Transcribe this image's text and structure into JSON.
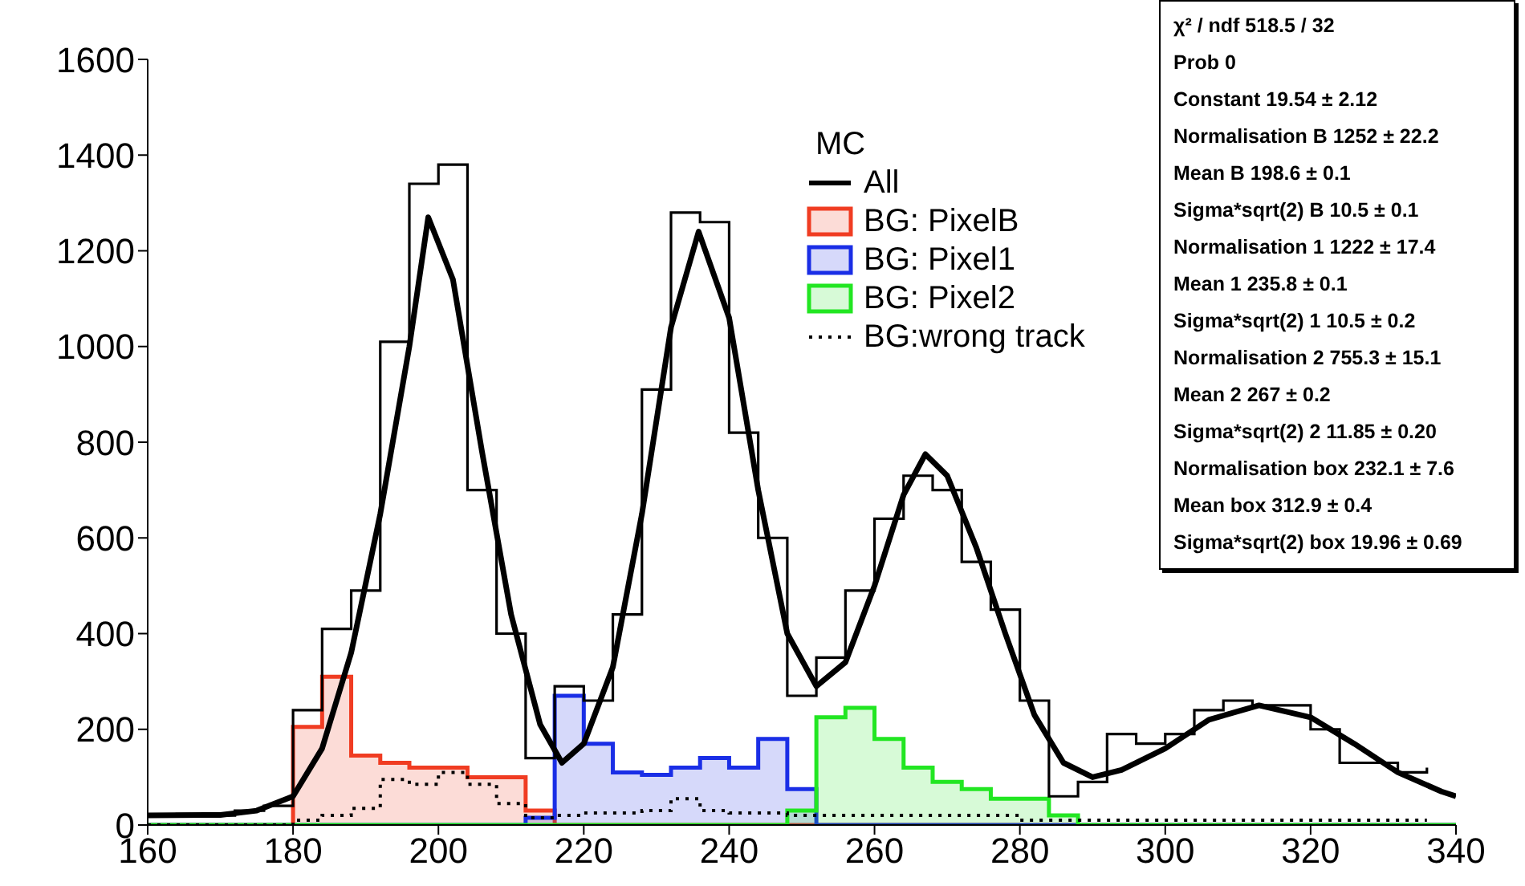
{
  "chart_data": {
    "type": "histogram",
    "legend_title": "MC",
    "legend": "top",
    "bins": [
      160,
      164,
      168,
      172,
      176,
      180,
      184,
      188,
      192,
      196,
      200,
      204,
      208,
      212,
      216,
      220,
      224,
      228,
      232,
      236,
      240,
      244,
      248,
      252,
      256,
      260,
      264,
      268,
      272,
      276,
      280,
      284,
      288,
      292,
      296,
      300,
      304,
      308,
      312,
      316,
      320,
      324,
      328,
      332,
      336,
      340
    ],
    "series": [
      {
        "name": "All",
        "type": "step",
        "x": [
          160,
          164,
          168,
          172,
          176,
          180,
          184,
          188,
          192,
          196,
          200,
          204,
          208,
          212,
          216,
          220,
          224,
          228,
          232,
          236,
          240,
          244,
          248,
          252,
          256,
          260,
          264,
          268,
          272,
          276,
          280,
          284,
          288,
          292,
          296,
          300,
          304,
          308,
          312,
          316,
          320,
          324,
          328,
          332,
          336
        ],
        "color": "#000000",
        "values": [
          20,
          23,
          20,
          30,
          40,
          240,
          410,
          490,
          1010,
          1340,
          1380,
          700,
          400,
          140,
          290,
          260,
          440,
          910,
          1280,
          1260,
          820,
          600,
          270,
          350,
          490,
          640,
          730,
          700,
          550,
          450,
          260,
          60,
          90,
          190,
          170,
          190,
          240,
          260,
          250,
          250,
          200,
          130,
          130,
          110,
          120
        ]
      },
      {
        "name": "BG: PixelB",
        "color": "#f03c22",
        "values": [
          0,
          0,
          0,
          0,
          0,
          205,
          310,
          145,
          130,
          120,
          120,
          100,
          100,
          30,
          0,
          0,
          0,
          0,
          0,
          0,
          0,
          0,
          0,
          0,
          0,
          0,
          0,
          0,
          0,
          0,
          0,
          0,
          0,
          0,
          0,
          0,
          0,
          0,
          0,
          0,
          0,
          0,
          0,
          0,
          0
        ]
      },
      {
        "name": "BG: Pixel1",
        "color": "#1a2ee6",
        "values": [
          0,
          0,
          0,
          0,
          0,
          0,
          0,
          0,
          0,
          0,
          0,
          0,
          0,
          15,
          270,
          170,
          110,
          105,
          120,
          140,
          120,
          180,
          75,
          0,
          0,
          0,
          0,
          0,
          0,
          0,
          0,
          0,
          0,
          0,
          0,
          0,
          0,
          0,
          0,
          0,
          0,
          0,
          0,
          0,
          0
        ]
      },
      {
        "name": "BG: Pixel2",
        "color": "#22e622",
        "values": [
          0,
          0,
          0,
          0,
          0,
          0,
          0,
          0,
          0,
          0,
          0,
          0,
          0,
          0,
          0,
          0,
          0,
          0,
          0,
          0,
          0,
          0,
          30,
          225,
          245,
          180,
          120,
          90,
          75,
          55,
          55,
          20,
          0,
          0,
          0,
          0,
          0,
          0,
          0,
          0,
          0,
          0,
          0,
          0,
          0
        ]
      },
      {
        "name": "BG:wrong track",
        "type": "step",
        "x": [
          160,
          164,
          168,
          172,
          176,
          180,
          184,
          188,
          192,
          196,
          200,
          204,
          208,
          212,
          216,
          220,
          224,
          228,
          232,
          236,
          240,
          244,
          248,
          252,
          256,
          260,
          264,
          268,
          272,
          276,
          280,
          284,
          288,
          292,
          296,
          300,
          304,
          308,
          312,
          316,
          320,
          324,
          328,
          332,
          336
        ],
        "line_style": "dotted",
        "color": "#000000",
        "values": [
          0,
          0,
          0,
          0,
          0,
          10,
          20,
          35,
          95,
          85,
          110,
          85,
          45,
          15,
          20,
          25,
          25,
          30,
          55,
          30,
          25,
          25,
          20,
          20,
          20,
          20,
          20,
          20,
          20,
          20,
          10,
          10,
          10,
          10,
          10,
          10,
          10,
          10,
          10,
          10,
          10,
          10,
          10,
          10,
          10
        ]
      },
      {
        "type": "line",
        "color": "#000000",
        "x": [
          160,
          170,
          175,
          180,
          184,
          188,
          192,
          196,
          198.6,
          202,
          206,
          210,
          214,
          217,
          220,
          224,
          228,
          232,
          235.8,
          240,
          244,
          248,
          252,
          256,
          260,
          264,
          267,
          270,
          274,
          278,
          282,
          286,
          290,
          294,
          300,
          306,
          312.9,
          320,
          326,
          332,
          338,
          340
        ],
        "values": [
          20,
          21,
          30,
          60,
          160,
          360,
          650,
          1000,
          1270,
          1140,
          780,
          440,
          210,
          130,
          170,
          330,
          650,
          1040,
          1240,
          1060,
          700,
          400,
          290,
          340,
          500,
          690,
          775,
          730,
          580,
          400,
          230,
          130,
          100,
          115,
          160,
          220,
          250,
          225,
          170,
          110,
          70,
          60
        ]
      }
    ],
    "xlim": [
      160,
      340
    ],
    "xticks": [
      160,
      180,
      200,
      220,
      240,
      260,
      280,
      300,
      320,
      340
    ],
    "ylim": [
      0,
      1600
    ],
    "yticks": [
      0,
      200,
      400,
      600,
      800,
      1000,
      1200,
      1400,
      1600
    ],
    "grid": false,
    "annotations": [
      "χ² / ndf 518.5 / 32",
      "Prob 0",
      "Constant 19.54 ± 2.12",
      "Normalisation B 1252 ± 22.2",
      "Mean B 198.6 ± 0.1",
      "Sigma*sqrt(2) B 10.5 ± 0.1",
      "Normalisation 1 1222 ± 17.4",
      "Mean 1 235.8 ± 0.1",
      "Sigma*sqrt(2) 1 10.5 ± 0.2",
      "Normalisation 2 755.3 ± 15.1",
      "Mean 2 267 ± 0.2",
      "Sigma*sqrt(2) 2 11.85 ± 0.20",
      "Normalisation box 232.1 ± 7.6",
      "Mean box 312.9 ± 0.4",
      "Sigma*sqrt(2) box 19.96 ± 0.69"
    ]
  }
}
